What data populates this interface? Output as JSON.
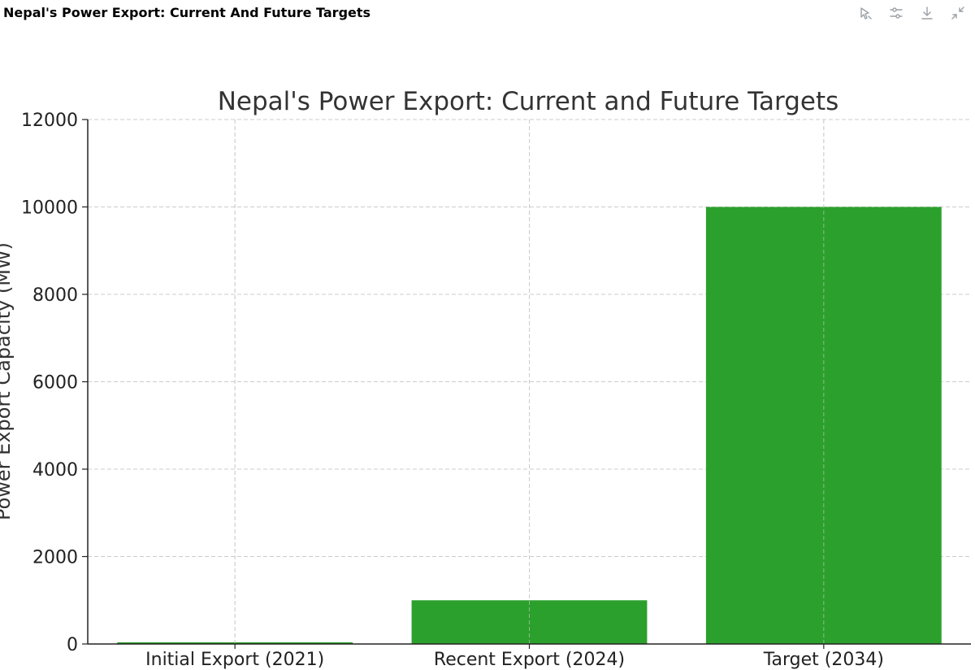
{
  "header": {
    "title": "Nepal's Power Export: Current And Future Targets",
    "toolbar": [
      {
        "name": "pin-chart-icon"
      },
      {
        "name": "settings-sliders-icon"
      },
      {
        "name": "download-icon"
      },
      {
        "name": "collapse-icon"
      }
    ]
  },
  "chart_data": {
    "type": "bar",
    "title": "Nepal's Power Export: Current and Future Targets",
    "xlabel": "",
    "ylabel": "Power Export Capacity (MW)",
    "categories": [
      "Initial Export (2021)",
      "Recent Export (2024)",
      "Target (2034)"
    ],
    "values": [
      39,
      1000,
      10000
    ],
    "ylim": [
      0,
      12000
    ],
    "yticks": [
      0,
      2000,
      4000,
      6000,
      8000,
      10000,
      12000
    ],
    "grid": true,
    "bar_color": "#2ca02c"
  }
}
